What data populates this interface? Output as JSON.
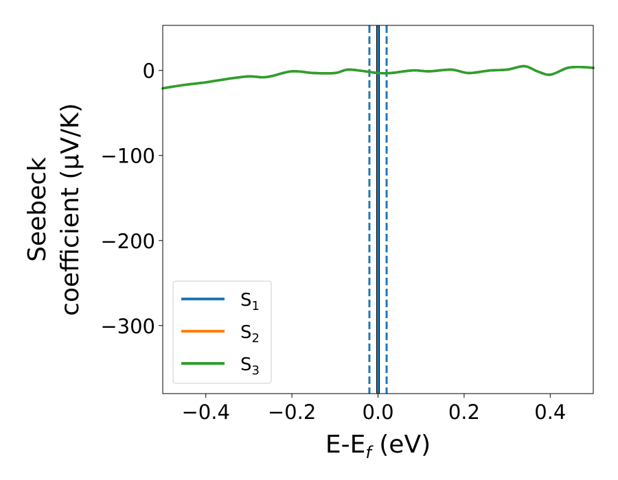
{
  "chart_data": {
    "type": "line",
    "xlabel": "E-E$_f$ (eV)",
    "xlabel_parts": {
      "main": "E-E",
      "sub": "f",
      "tail": " (eV)"
    },
    "ylabel_line1": "Seebeck",
    "ylabel_line2": "coefficient  (μV/K)",
    "xlim": [
      -0.5,
      0.5
    ],
    "ylim": [
      -380,
      53
    ],
    "x_ticks": [
      -0.4,
      -0.2,
      0.0,
      0.2,
      0.4
    ],
    "x_tick_labels": [
      "−0.4",
      "−0.2",
      "0.0",
      "0.2",
      "0.4"
    ],
    "y_ticks": [
      0,
      -100,
      -200,
      -300
    ],
    "y_tick_labels": [
      "0",
      "−100",
      "−200",
      "−300"
    ],
    "grid": false,
    "legend_position": "lower-left",
    "vertical_lines": [
      {
        "x": 0.0,
        "style": "solid",
        "color": "#000000"
      },
      {
        "x": 0.0,
        "style": "solid",
        "color": "#1f77b4"
      },
      {
        "x": -0.02,
        "style": "dashed",
        "color": "#1f77b4"
      },
      {
        "x": 0.02,
        "style": "dashed",
        "color": "#1f77b4"
      }
    ],
    "x": [
      -0.5,
      -0.45,
      -0.4,
      -0.35,
      -0.3,
      -0.27,
      -0.25,
      -0.2,
      -0.15,
      -0.1,
      -0.07,
      -0.03,
      0.0,
      0.03,
      0.08,
      0.12,
      0.17,
      0.21,
      0.26,
      0.3,
      0.34,
      0.37,
      0.4,
      0.44,
      0.47,
      0.5
    ],
    "series": [
      {
        "name": "S1",
        "label_main": "S",
        "label_sub": "1",
        "color": "#1f77b4",
        "values": [
          -21,
          -17,
          -14,
          -10,
          -7,
          -8,
          -7,
          -1,
          -3,
          -3,
          1,
          -1,
          -3,
          -3,
          0,
          -1,
          1,
          -3,
          0,
          1,
          5,
          -1,
          -5,
          3,
          4,
          3
        ]
      },
      {
        "name": "S2",
        "label_main": "S",
        "label_sub": "2",
        "color": "#ff7f0e",
        "values": [
          -21,
          -17,
          -14,
          -10,
          -7,
          -8,
          -7,
          -1,
          -3,
          -3,
          1,
          -1,
          -3,
          -3,
          0,
          -1,
          1,
          -3,
          0,
          1,
          5,
          -1,
          -5,
          3,
          4,
          3
        ]
      },
      {
        "name": "S3",
        "label_main": "S",
        "label_sub": "3",
        "color": "#2ca02c",
        "values": [
          -21,
          -17,
          -14,
          -10,
          -7,
          -8,
          -7,
          -1,
          -3,
          -3,
          1,
          -1,
          -3,
          -3,
          0,
          -1,
          1,
          -3,
          0,
          1,
          5,
          -1,
          -5,
          3,
          4,
          3
        ]
      }
    ]
  }
}
